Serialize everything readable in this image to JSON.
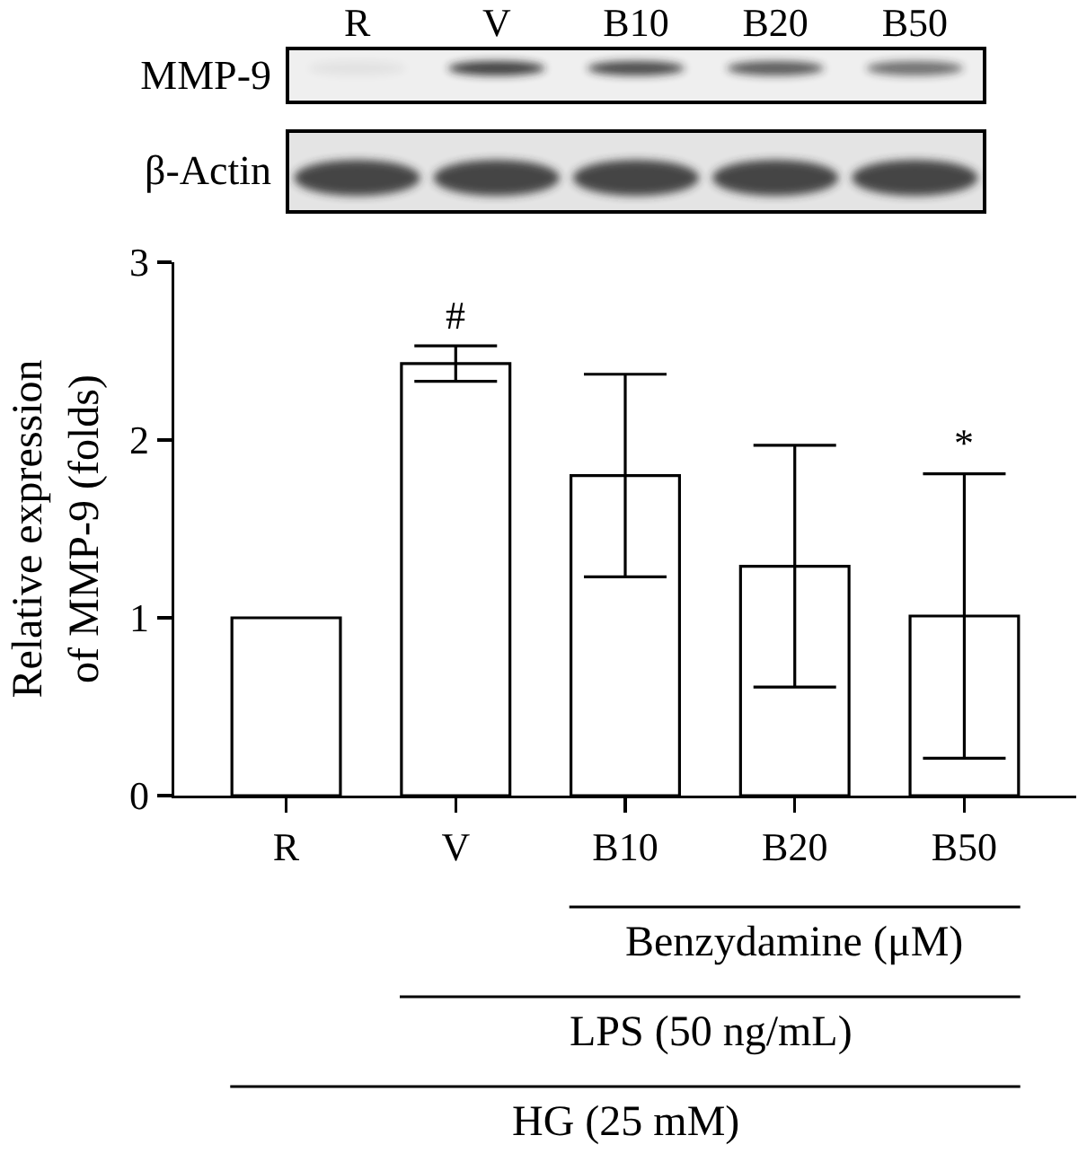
{
  "chart_data": {
    "type": "bar",
    "categories": [
      "R",
      "V",
      "B10",
      "B20",
      "B50"
    ],
    "values": [
      1.0,
      2.43,
      1.8,
      1.29,
      1.01
    ],
    "color": "#ffffff",
    "errors": [
      null,
      0.1,
      0.57,
      0.68,
      0.8
    ],
    "ylabel": "Relative expression of MMP-9 (folds)",
    "ylim": [
      0,
      3
    ],
    "yticks": [
      0,
      1,
      2,
      3
    ],
    "annotations": [
      "MMP-9",
      "β-Actin",
      "#",
      "*",
      "Benzydamine (μM)",
      "LPS (50 ng/mL)",
      "HG (25 mM)"
    ]
  }
}
